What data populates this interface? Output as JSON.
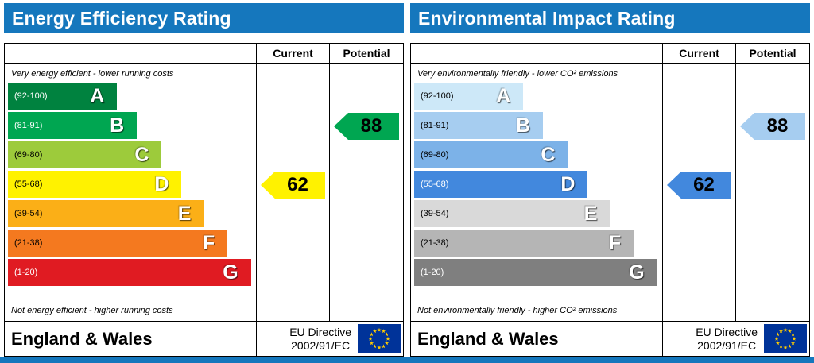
{
  "page": {
    "accent_blue": "#1577bd",
    "eu_flag_blue": "#003399",
    "eu_star_yellow": "#FFCC00"
  },
  "chart_data": [
    {
      "type": "bar",
      "title": "Energy Efficiency Rating",
      "columns": {
        "current": "Current",
        "potential": "Potential"
      },
      "top_note": "Very energy efficient - lower running costs",
      "bottom_note": "Not energy efficient - higher running costs",
      "bands": [
        {
          "letter": "A",
          "range": "(92-100)",
          "min": 92,
          "max": 100,
          "color": "#00823f",
          "range_color": "#ffffff",
          "width_pct": 44
        },
        {
          "letter": "B",
          "range": "(81-91)",
          "min": 81,
          "max": 91,
          "color": "#00a651",
          "range_color": "#ffffff",
          "width_pct": 52
        },
        {
          "letter": "C",
          "range": "(69-80)",
          "min": 69,
          "max": 80,
          "color": "#9dcb3b",
          "range_color": "#000000",
          "width_pct": 62
        },
        {
          "letter": "D",
          "range": "(55-68)",
          "min": 55,
          "max": 68,
          "color": "#fff200",
          "range_color": "#000000",
          "width_pct": 70
        },
        {
          "letter": "E",
          "range": "(39-54)",
          "min": 39,
          "max": 54,
          "color": "#fbaf17",
          "range_color": "#000000",
          "width_pct": 79
        },
        {
          "letter": "F",
          "range": "(21-38)",
          "min": 21,
          "max": 38,
          "color": "#f4791f",
          "range_color": "#000000",
          "width_pct": 88.5
        },
        {
          "letter": "G",
          "range": "(1-20)",
          "min": 1,
          "max": 20,
          "color": "#e01b22",
          "range_color": "#ffffff",
          "width_pct": 98
        }
      ],
      "current": {
        "label": "62",
        "value": 62,
        "band": "D",
        "band_index": 3,
        "color": "#fff200"
      },
      "potential": {
        "label": "88",
        "value": 88,
        "band": "B",
        "band_index": 1,
        "color": "#00a651"
      },
      "footer": {
        "region": "England & Wales",
        "directive_line1": "EU Directive",
        "directive_line2": "2002/91/EC"
      }
    },
    {
      "type": "bar",
      "title": "Environmental Impact Rating",
      "columns": {
        "current": "Current",
        "potential": "Potential"
      },
      "top_note": "Very environmentally friendly - lower CO² emissions",
      "bottom_note": "Not environmentally friendly - higher CO² emissions",
      "bands": [
        {
          "letter": "A",
          "range": "(92-100)",
          "min": 92,
          "max": 100,
          "color": "#cde8f8",
          "range_color": "#000000",
          "width_pct": 44
        },
        {
          "letter": "B",
          "range": "(81-91)",
          "min": 81,
          "max": 91,
          "color": "#a6cdf0",
          "range_color": "#000000",
          "width_pct": 52
        },
        {
          "letter": "C",
          "range": "(69-80)",
          "min": 69,
          "max": 80,
          "color": "#7cb2e8",
          "range_color": "#000000",
          "width_pct": 62
        },
        {
          "letter": "D",
          "range": "(55-68)",
          "min": 55,
          "max": 68,
          "color": "#4288dd",
          "range_color": "#ffffff",
          "width_pct": 70
        },
        {
          "letter": "E",
          "range": "(39-54)",
          "min": 39,
          "max": 54,
          "color": "#d9d9d9",
          "range_color": "#000000",
          "width_pct": 79
        },
        {
          "letter": "F",
          "range": "(21-38)",
          "min": 21,
          "max": 38,
          "color": "#b5b5b5",
          "range_color": "#000000",
          "width_pct": 88.5
        },
        {
          "letter": "G",
          "range": "(1-20)",
          "min": 1,
          "max": 20,
          "color": "#7f7f7f",
          "range_color": "#ffffff",
          "width_pct": 98
        }
      ],
      "current": {
        "label": "62",
        "value": 62,
        "band": "D",
        "band_index": 3,
        "color": "#4288dd"
      },
      "potential": {
        "label": "88",
        "value": 88,
        "band": "B",
        "band_index": 1,
        "color": "#a6cdf0"
      },
      "footer": {
        "region": "England & Wales",
        "directive_line1": "EU Directive",
        "directive_line2": "2002/91/EC"
      }
    }
  ]
}
